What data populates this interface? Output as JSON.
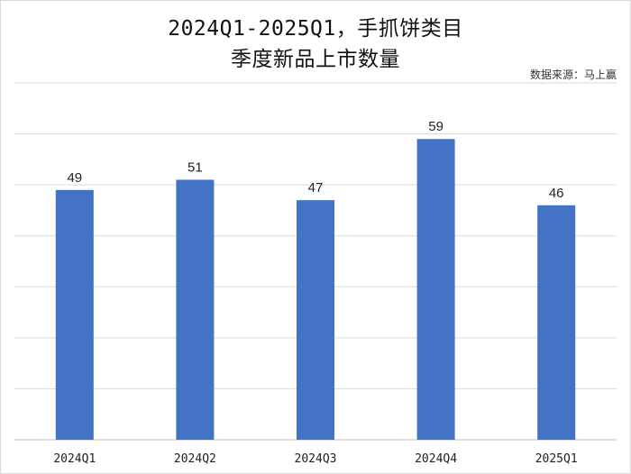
{
  "chart_data": {
    "type": "bar",
    "title_line1": "2024Q1-2025Q1，手抓饼类目",
    "title_line2": "季度新品上市数量",
    "source": "数据来源：马上赢",
    "categories": [
      "2024Q1",
      "2024Q2",
      "2024Q3",
      "2024Q4",
      "2025Q1"
    ],
    "values": [
      49,
      51,
      47,
      59,
      46
    ],
    "ylim": [
      0,
      70
    ],
    "gridlines": true,
    "bar_color": "#4472c4",
    "grid_color": "#d9d9d9"
  }
}
